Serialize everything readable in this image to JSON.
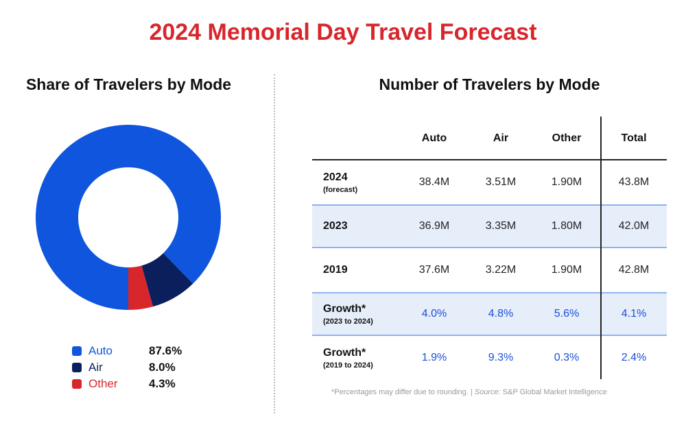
{
  "title": "2024 Memorial Day Travel Forecast",
  "left_title": "Share of Travelers by Mode",
  "right_title": "Number of Travelers by Mode",
  "colors": {
    "Auto": "#0f55dd",
    "Air": "#0a1f5c",
    "Other": "#d7262c",
    "title": "#d7262c",
    "value_blue": "#1a4fd8"
  },
  "chart_data": [
    {
      "type": "pie",
      "title": "Share of Travelers by Mode",
      "donut": true,
      "slices": [
        {
          "label": "Auto",
          "value": 87.6,
          "display": "87.6%"
        },
        {
          "label": "Air",
          "value": 8.0,
          "display": "8.0%"
        },
        {
          "label": "Other",
          "value": 4.3,
          "display": "4.3%"
        }
      ],
      "legend": "bottom"
    },
    {
      "type": "table",
      "title": "Number of Travelers by Mode",
      "columns": [
        "Auto",
        "Air",
        "Other",
        "Total"
      ],
      "rows": [
        {
          "label": "2024",
          "sublabel": "(forecast)",
          "values": [
            "38.4M",
            "3.51M",
            "1.90M",
            "43.8M"
          ],
          "shade": false,
          "blue": false
        },
        {
          "label": "2023",
          "sublabel": "",
          "values": [
            "36.9M",
            "3.35M",
            "1.80M",
            "42.0M"
          ],
          "shade": true,
          "blue": false
        },
        {
          "label": "2019",
          "sublabel": "",
          "values": [
            "37.6M",
            "3.22M",
            "1.90M",
            "42.8M"
          ],
          "shade": false,
          "blue": false
        },
        {
          "label": "Growth*",
          "sublabel": "(2023 to 2024)",
          "values": [
            "4.0%",
            "4.8%",
            "5.6%",
            "4.1%"
          ],
          "shade": true,
          "blue": true
        },
        {
          "label": "Growth*",
          "sublabel": "(2019 to 2024)",
          "values": [
            "1.9%",
            "9.3%",
            "0.3%",
            "2.4%"
          ],
          "shade": false,
          "blue": true
        }
      ]
    }
  ],
  "footnote": "*Percentages may differ due to rounding. | ",
  "source_label": "Source:",
  "source": " S&P Global Market Intelligence"
}
